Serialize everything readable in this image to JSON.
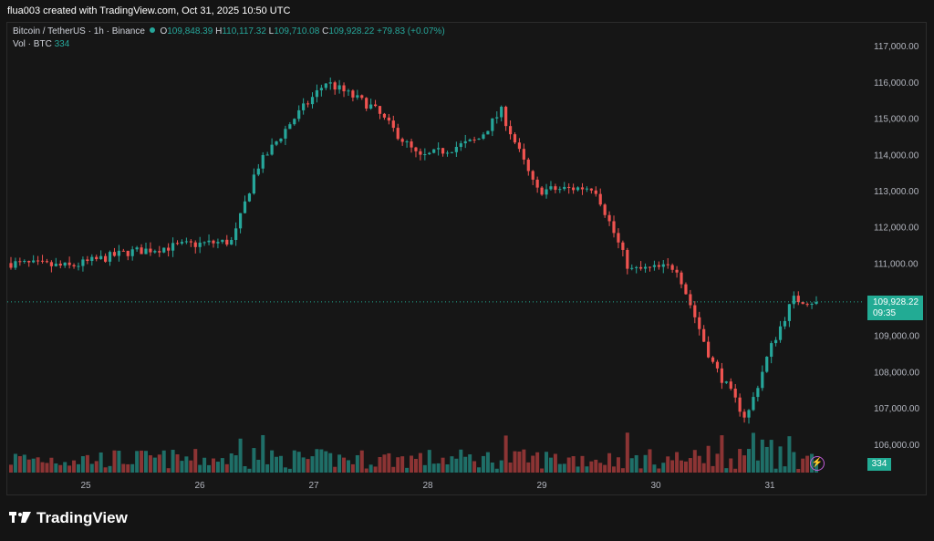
{
  "header": {
    "credit": "flua003 created with TradingView.com, Oct 31, 2025 10:50 UTC"
  },
  "legend": {
    "symbol": "Bitcoin / TetherUS · 1h · Binance",
    "o_label": "O",
    "o": "109,848.39",
    "h_label": "H",
    "h": "110,117.32",
    "l_label": "L",
    "l": "109,710.08",
    "c_label": "C",
    "c": "109,928.22",
    "change": "+79.83 (+0.07%)",
    "vol_label": "Vol · BTC",
    "vol_value": "334"
  },
  "price_tag": {
    "price": "109,928.22",
    "countdown": "09:35"
  },
  "vol_tag": "334",
  "logo": {
    "text": "TradingView"
  },
  "colors": {
    "up": "#26a69a",
    "down": "#ef5350",
    "up_vol": "#1f6f68",
    "down_vol": "#8c3434",
    "accent": "#22ab94"
  },
  "chart_data": {
    "type": "candlestick",
    "symbol": "Bitcoin / TetherUS",
    "interval": "1h",
    "exchange": "Binance",
    "last_price": 109928.22,
    "x_tick_labels": [
      "25",
      "26",
      "27",
      "28",
      "29",
      "30",
      "31"
    ],
    "y_tick_values": [
      106000,
      107000,
      108000,
      109000,
      110000,
      111000,
      112000,
      113000,
      114000,
      115000,
      116000,
      117000
    ],
    "y_tick_labels": [
      "106,000.00",
      "107,000.00",
      "108,000.00",
      "109,000.00",
      "110,000.00",
      "111,000.00",
      "112,000.00",
      "113,000.00",
      "114,000.00",
      "115,000.00",
      "116,000.00",
      "117,000.00"
    ],
    "ylim": [
      105500,
      117400
    ],
    "grid": false,
    "key_closes": [
      {
        "day": 24.5,
        "close": 111000
      },
      {
        "day": 25.0,
        "close": 110900
      },
      {
        "day": 25.5,
        "close": 111300
      },
      {
        "day": 26.0,
        "close": 111500
      },
      {
        "day": 26.4,
        "close": 111600
      },
      {
        "day": 26.6,
        "close": 113600
      },
      {
        "day": 26.9,
        "close": 114900
      },
      {
        "day": 27.2,
        "close": 116000
      },
      {
        "day": 27.6,
        "close": 115300
      },
      {
        "day": 28.0,
        "close": 113900
      },
      {
        "day": 28.5,
        "close": 114400
      },
      {
        "day": 28.7,
        "close": 115200
      },
      {
        "day": 29.0,
        "close": 113000
      },
      {
        "day": 29.5,
        "close": 113100
      },
      {
        "day": 29.8,
        "close": 110800
      },
      {
        "day": 30.2,
        "close": 110900
      },
      {
        "day": 30.5,
        "close": 108300
      },
      {
        "day": 30.8,
        "close": 106700
      },
      {
        "day": 31.0,
        "close": 108600
      },
      {
        "day": 31.2,
        "close": 110000
      },
      {
        "day": 31.4,
        "close": 109928
      }
    ]
  }
}
